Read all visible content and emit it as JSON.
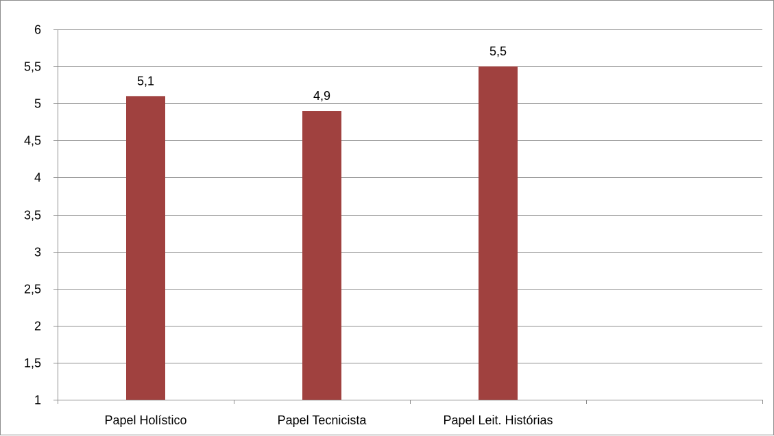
{
  "chart_data": {
    "type": "bar",
    "title": "",
    "xlabel": "",
    "ylabel": "",
    "categories": [
      "Papel Holístico",
      "Papel Tecnicista",
      "Papel Leit. Histórias",
      ""
    ],
    "values": [
      5.1,
      4.9,
      5.5,
      null
    ],
    "data_labels": [
      "5,1",
      "4,9",
      "5,5",
      ""
    ],
    "ylim": [
      1,
      6
    ],
    "y_ticks": [
      1,
      1.5,
      2,
      2.5,
      3,
      3.5,
      4,
      4.5,
      5,
      5.5,
      6
    ],
    "y_tick_labels": [
      "1",
      "1,5",
      "2",
      "2,5",
      "3",
      "3,5",
      "4",
      "4,5",
      "5",
      "5,5",
      "6"
    ],
    "grid": true,
    "legend": "none",
    "colors": {
      "bar": "#a0413f",
      "grid": "#8c8c8c",
      "axis": "#8c8c8c"
    }
  }
}
